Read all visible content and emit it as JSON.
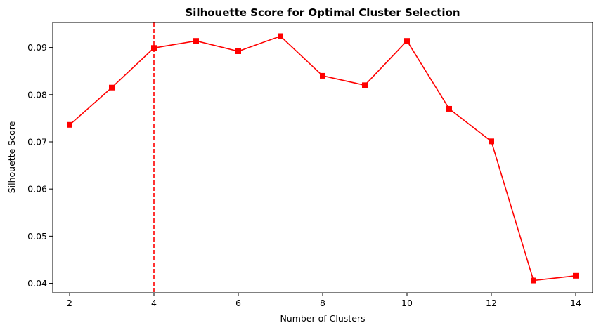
{
  "chart_data": {
    "type": "line",
    "title": "Silhouette Score for Optimal Cluster Selection",
    "xlabel": "Number of Clusters",
    "ylabel": "Silhouette Score",
    "x": [
      2,
      3,
      4,
      5,
      6,
      7,
      8,
      9,
      10,
      11,
      12,
      13,
      14
    ],
    "series": [
      {
        "values": [
          0.0736,
          0.0815,
          0.0899,
          0.0914,
          0.0892,
          0.0924,
          0.084,
          0.082,
          0.0914,
          0.077,
          0.0701,
          0.0406,
          0.0416
        ],
        "color": "#ff0000",
        "marker": "square"
      }
    ],
    "xlim": [
      1.6,
      14.4
    ],
    "ylim": [
      0.038,
      0.0953
    ],
    "xticks": [
      "2",
      "4",
      "6",
      "8",
      "10",
      "12",
      "14"
    ],
    "yticks": [
      "0.04",
      "0.05",
      "0.06",
      "0.07",
      "0.08",
      "0.09"
    ],
    "reference_line": {
      "x": 4,
      "orientation": "vertical",
      "style": "dashed",
      "color": "#ff0000"
    },
    "grid": false,
    "legend": "none"
  }
}
